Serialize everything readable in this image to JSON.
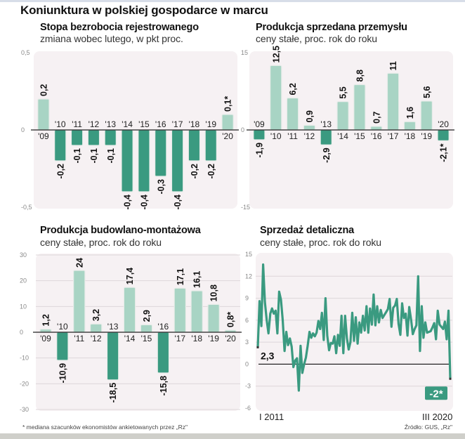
{
  "title": "Koniunktura w polskiej gospodarce w marcu",
  "footnote": "* mediana szacunków ekonomistów ankietowanych przez „Rz\"",
  "source": "Źródło: GUS, „Rz\"",
  "colors": {
    "positive": "#a8d4c4",
    "negative": "#3a9a80",
    "panel_bg": "#f6f1f3",
    "line": "#3a9a80"
  },
  "chart_data": [
    {
      "type": "bar",
      "title": "Stopa bezrobocia rejestrowanego",
      "subtitle": "zmiana wobec lutego, w pkt proc.",
      "categories": [
        "'09",
        "'10",
        "'11",
        "'12",
        "'13",
        "'14",
        "'15",
        "'16",
        "'17",
        "'18",
        "'19",
        "'20"
      ],
      "values": [
        0.2,
        -0.2,
        -0.1,
        -0.1,
        -0.1,
        -0.4,
        -0.4,
        -0.3,
        -0.4,
        -0.2,
        -0.2,
        0.1
      ],
      "labels": [
        "0,2",
        "-0,2",
        "-0,1",
        "-0,1",
        "-0,1",
        "-0,4",
        "-0,4",
        "-0,3",
        "-0,4",
        "-0,2",
        "-0,2",
        "0,1*"
      ],
      "ylim": [
        -0.5,
        0.5
      ],
      "yticks": [
        "0,5",
        "0",
        "-0,5"
      ],
      "ytick_values": [
        0.5,
        0,
        -0.5
      ],
      "grid": false
    },
    {
      "type": "bar",
      "title": "Produkcja sprzedana przemysłu",
      "subtitle": "ceny stałe, proc. rok do roku",
      "categories": [
        "'09",
        "'10",
        "'11",
        "'12",
        "'13",
        "'14",
        "'15",
        "'16",
        "'17",
        "'18",
        "'19",
        "'20"
      ],
      "values": [
        -1.9,
        12.5,
        6.2,
        0.9,
        -2.9,
        5.5,
        8.8,
        0.7,
        11,
        1.6,
        5.6,
        -2.1
      ],
      "labels": [
        "-1,9",
        "12,5",
        "6,2",
        "0,9",
        "-2,9",
        "5,5",
        "8,8",
        "0,7",
        "11",
        "1,6",
        "5,6",
        "-2,1*"
      ],
      "ylim": [
        -15,
        15
      ],
      "yticks": [
        "15",
        "0",
        "-15"
      ],
      "ytick_values": [
        15,
        0,
        -15
      ],
      "grid": false
    },
    {
      "type": "bar",
      "title": "Produkcja budowlano-montażowa",
      "subtitle": "ceny stałe, proc. rok do roku",
      "categories": [
        "'09",
        "'10",
        "'11",
        "'12",
        "'13",
        "'14",
        "'15",
        "'16",
        "'17",
        "'18",
        "'19",
        "'20"
      ],
      "values": [
        1.2,
        -10.9,
        24,
        3.2,
        -18.5,
        17.4,
        2.9,
        -15.8,
        17.1,
        16.1,
        10.8,
        0.8
      ],
      "labels": [
        "1,2",
        "-10,9",
        "24",
        "3,2",
        "-18,5",
        "17,4",
        "2,9",
        "-15,8",
        "17,1",
        "16,1",
        "10,8",
        "0,8*"
      ],
      "ylim": [
        -30,
        30
      ],
      "yticks": [
        "30",
        "20",
        "10",
        "0",
        "-10",
        "-20",
        "-30"
      ],
      "ytick_values": [
        30,
        20,
        10,
        0,
        -10,
        -20,
        -30
      ],
      "grid": true
    },
    {
      "type": "line",
      "title": "Sprzedaż detaliczna",
      "subtitle": "ceny stałe, proc. rok do roku",
      "x_start_label": "I 2011",
      "x_end_label": "III 2020",
      "start_label": "2,3",
      "end_label": "-2*",
      "ylim": [
        -6,
        15
      ],
      "yticks": [
        "15",
        "12",
        "9",
        "6",
        "3",
        "0",
        "-3",
        "-6"
      ],
      "ytick_values": [
        15,
        12,
        9,
        6,
        3,
        0,
        -3,
        -6
      ],
      "grid": true,
      "values": [
        2.3,
        8.6,
        5.2,
        13.6,
        8.5,
        6.0,
        4.2,
        6.9,
        7.6,
        6.9,
        7.3,
        4.2,
        9.9,
        8.8,
        6.0,
        1.8,
        4.4,
        2.6,
        3.5,
        2.4,
        -0.4,
        0.5,
        0.8,
        -3.6,
        2.5,
        -1.2,
        0.0,
        0.9,
        2.5,
        4.4,
        3.6,
        4.2,
        3.8,
        4.3,
        5.9,
        4.8,
        7.0,
        3.3,
        9.0,
        3.9,
        1.9,
        2.9,
        2.8,
        3.8,
        1.5,
        4.0,
        2.5,
        6.6,
        1.5,
        6.6,
        3.5,
        2.0,
        3.0,
        7.0,
        3.2,
        6.4,
        2.8,
        5.7,
        4.3,
        6.6,
        4.6,
        7.9,
        4.3,
        7.6,
        5.4,
        9.5,
        5.3,
        7.9,
        5.7,
        7.4,
        6.3,
        6.7,
        7.1,
        7.5,
        8.9,
        5.1,
        7.7,
        8.0,
        8.9,
        5.5,
        4.0,
        8.3,
        6.3,
        6.9,
        3.9,
        7.8,
        6.1,
        4.1,
        4.8,
        5.3,
        12.0,
        1.8,
        7.9,
        3.6,
        5.7,
        4.3,
        4.4,
        4.5,
        5.0,
        5.6,
        3.4,
        7.3,
        5.4,
        5.1,
        4.8,
        5.8,
        3.4,
        7.3,
        -2.0
      ]
    }
  ]
}
